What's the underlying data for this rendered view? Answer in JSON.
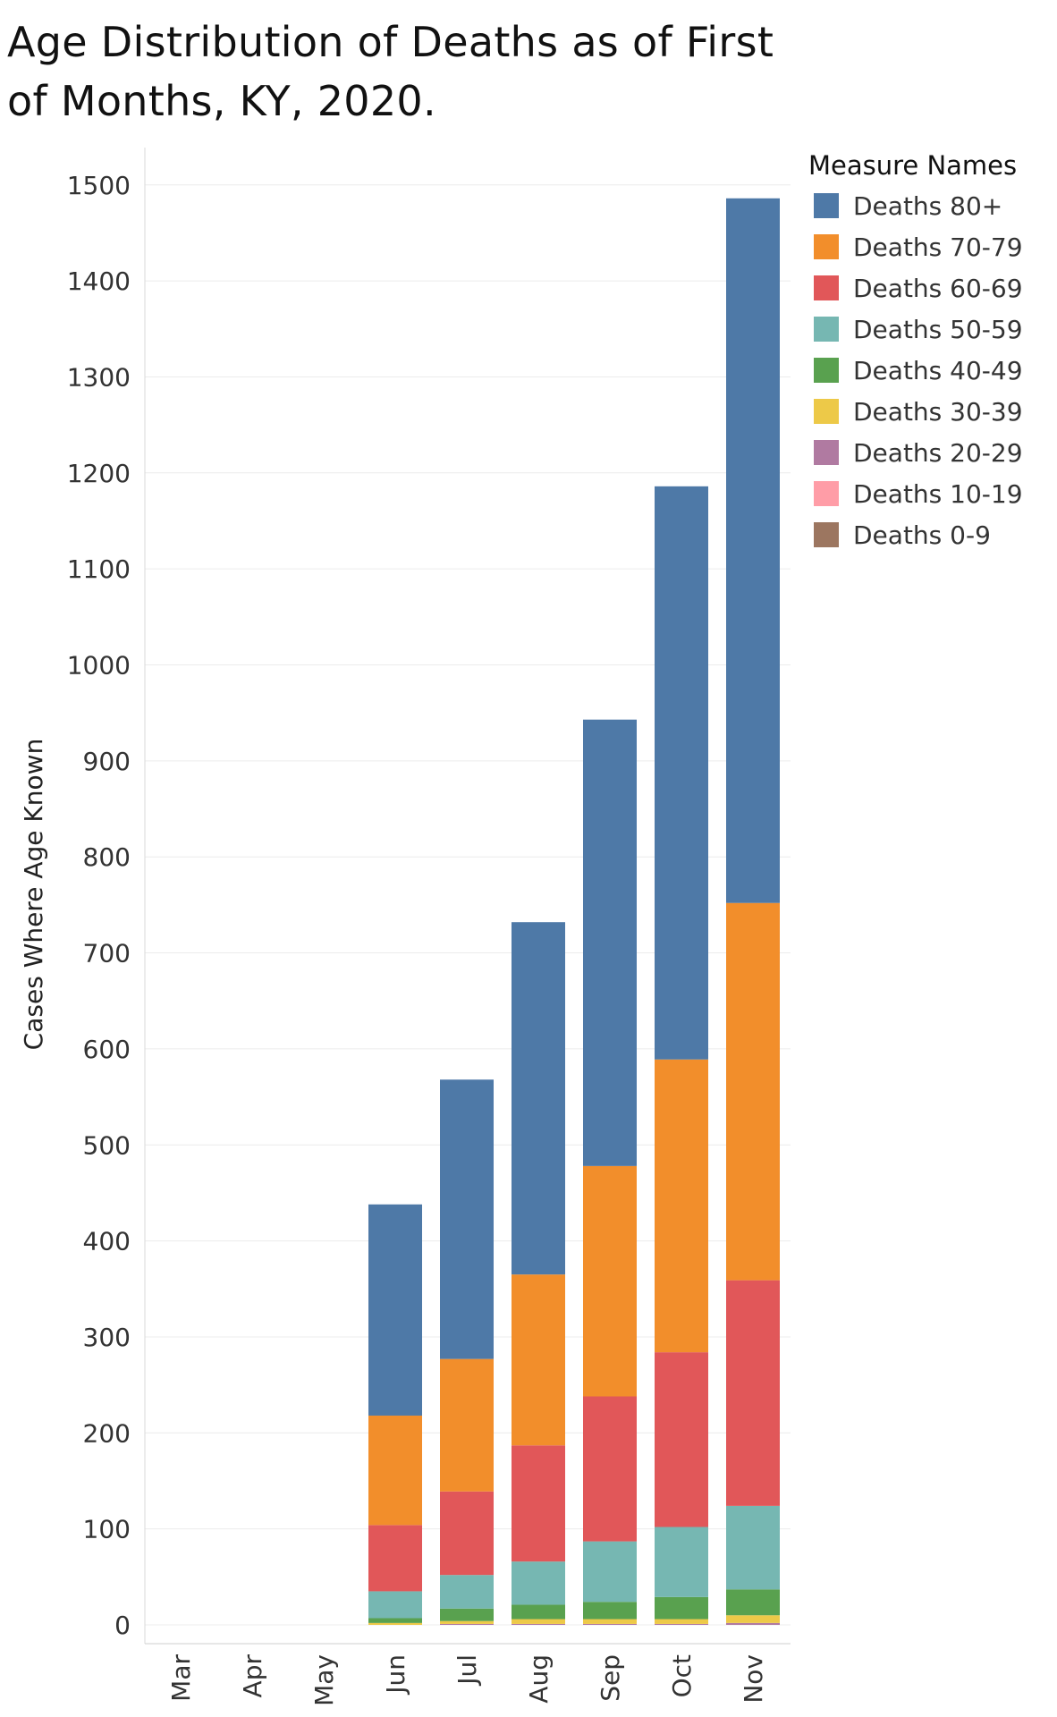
{
  "title": "Age Distribution of Deaths as of First of Months, KY, 2020.",
  "legend": {
    "title": "Measure Names"
  },
  "chart_data": {
    "type": "bar",
    "stacked": true,
    "title": "Age Distribution of Deaths as of First of Months, KY, 2020.",
    "xlabel": "",
    "ylabel": "Cases Where Age Known",
    "ylim": [
      -20,
      1560
    ],
    "yticks": [
      0,
      100,
      200,
      300,
      400,
      500,
      600,
      700,
      800,
      900,
      1000,
      1100,
      1200,
      1300,
      1400,
      1500
    ],
    "grid": true,
    "legend_position": "right",
    "categories": [
      "Mar",
      "Apr",
      "May",
      "Jun",
      "Jul",
      "Aug",
      "Sep",
      "Oct",
      "Nov"
    ],
    "series": [
      {
        "name": "Deaths 0-9",
        "color": "#9c7660",
        "values": [
          0,
          0,
          0,
          0,
          0,
          0,
          0,
          0,
          0
        ]
      },
      {
        "name": "Deaths 10-19",
        "color": "#ff9da7",
        "values": [
          0,
          0,
          0,
          0,
          0,
          0,
          0,
          0,
          0
        ]
      },
      {
        "name": "Deaths 20-29",
        "color": "#b07aa1",
        "values": [
          0,
          0,
          0,
          0,
          1,
          1,
          1,
          1,
          2
        ]
      },
      {
        "name": "Deaths 30-39",
        "color": "#edc948",
        "values": [
          0,
          0,
          0,
          2,
          3,
          5,
          5,
          5,
          8
        ]
      },
      {
        "name": "Deaths 40-49",
        "color": "#59a14f",
        "values": [
          0,
          0,
          0,
          5,
          13,
          15,
          18,
          23,
          27
        ]
      },
      {
        "name": "Deaths 50-59",
        "color": "#76b7b2",
        "values": [
          0,
          0,
          0,
          28,
          35,
          45,
          63,
          73,
          87
        ]
      },
      {
        "name": "Deaths 60-69",
        "color": "#e15759",
        "values": [
          0,
          0,
          0,
          69,
          87,
          121,
          151,
          182,
          235
        ]
      },
      {
        "name": "Deaths 70-79",
        "color": "#f28e2b",
        "values": [
          0,
          0,
          0,
          114,
          138,
          178,
          240,
          305,
          393
        ]
      },
      {
        "name": "Deaths 80+",
        "color": "#4e79a7",
        "values": [
          0,
          0,
          0,
          220,
          291,
          367,
          465,
          597,
          734
        ]
      }
    ]
  }
}
